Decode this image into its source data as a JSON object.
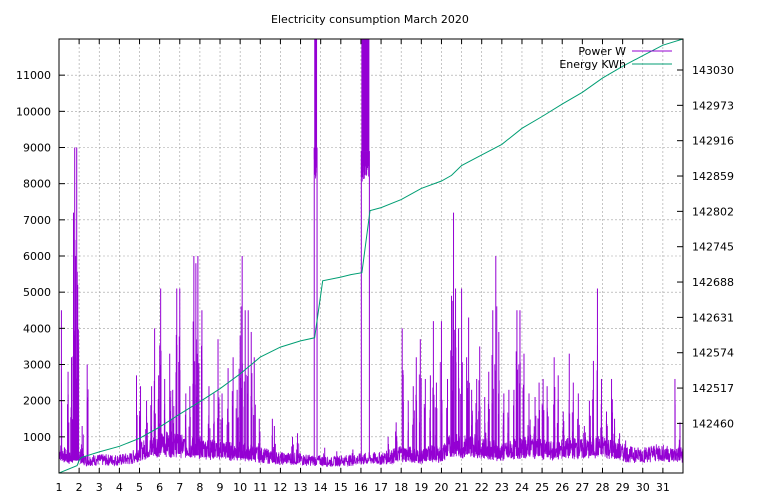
{
  "chart_data": {
    "type": "line",
    "title": "Electricity consumption March 2020",
    "grid": true,
    "legend_position": "top-right",
    "xlim": [
      1,
      32
    ],
    "x_ticks": [
      1,
      2,
      3,
      4,
      5,
      6,
      7,
      8,
      9,
      10,
      11,
      12,
      13,
      14,
      15,
      16,
      17,
      18,
      19,
      20,
      21,
      22,
      23,
      24,
      25,
      26,
      27,
      28,
      29,
      30,
      31
    ],
    "y_left": {
      "range": [
        0,
        12000
      ],
      "ticks": [
        1000,
        2000,
        3000,
        4000,
        5000,
        6000,
        7000,
        8000,
        9000,
        10000,
        11000
      ]
    },
    "y_right": {
      "range": [
        142380,
        143080
      ],
      "ticks": [
        142460,
        142517,
        142574,
        142631,
        142688,
        142745,
        142802,
        142859,
        142916,
        142973,
        143030
      ]
    },
    "series": [
      {
        "name": "Power W",
        "axis": "left",
        "color": "#9400d3",
        "baseline": [
          [
            1,
            600
          ],
          [
            1.5,
            400
          ],
          [
            1.7,
            500
          ],
          [
            2,
            500
          ],
          [
            2.3,
            350
          ],
          [
            3,
            360
          ],
          [
            4,
            360
          ],
          [
            4.6,
            400
          ],
          [
            5,
            600
          ],
          [
            5.5,
            700
          ],
          [
            6,
            800
          ],
          [
            6.5,
            800
          ],
          [
            7,
            750
          ],
          [
            7.5,
            700
          ],
          [
            8,
            700
          ],
          [
            8.5,
            650
          ],
          [
            9,
            650
          ],
          [
            9.5,
            600
          ],
          [
            10,
            600
          ],
          [
            10.6,
            550
          ],
          [
            11,
            500
          ],
          [
            11.5,
            450
          ],
          [
            12,
            400
          ],
          [
            12.5,
            400
          ],
          [
            13,
            380
          ],
          [
            13.5,
            350
          ],
          [
            14,
            340
          ],
          [
            14.5,
            300
          ],
          [
            15,
            350
          ],
          [
            15.5,
            350
          ],
          [
            16,
            380
          ],
          [
            16.5,
            400
          ],
          [
            17,
            400
          ],
          [
            17.5,
            450
          ],
          [
            18,
            550
          ],
          [
            18.5,
            500
          ],
          [
            19,
            450
          ],
          [
            19.5,
            550
          ],
          [
            20,
            500
          ],
          [
            20.5,
            800
          ],
          [
            21,
            700
          ],
          [
            21.5,
            800
          ],
          [
            22,
            700
          ],
          [
            22.5,
            650
          ],
          [
            23,
            550
          ],
          [
            23.5,
            650
          ],
          [
            24,
            700
          ],
          [
            24.5,
            750
          ],
          [
            25,
            650
          ],
          [
            25.5,
            600
          ],
          [
            26,
            650
          ],
          [
            26.5,
            700
          ],
          [
            27,
            650
          ],
          [
            27.5,
            700
          ],
          [
            28,
            750
          ],
          [
            28.5,
            650
          ],
          [
            29,
            550
          ],
          [
            29.5,
            500
          ],
          [
            30,
            500
          ],
          [
            30.5,
            550
          ],
          [
            31,
            550
          ],
          [
            31.5,
            500
          ],
          [
            32,
            500
          ]
        ],
        "peaks": [
          [
            1.12,
            4500
          ],
          [
            1.45,
            2800
          ],
          [
            1.62,
            3200
          ],
          [
            1.72,
            7200
          ],
          [
            1.78,
            9000
          ],
          [
            1.83,
            6000
          ],
          [
            1.88,
            9000
          ],
          [
            1.93,
            5200
          ],
          [
            2.15,
            1300
          ],
          [
            2.4,
            3000
          ],
          [
            4.85,
            2700
          ],
          [
            5.05,
            2400
          ],
          [
            5.35,
            2000
          ],
          [
            5.6,
            2400
          ],
          [
            5.75,
            4000
          ],
          [
            5.95,
            2700
          ],
          [
            6.05,
            5100
          ],
          [
            6.25,
            2600
          ],
          [
            6.5,
            3300
          ],
          [
            6.65,
            2300
          ],
          [
            6.85,
            5100
          ],
          [
            7.0,
            5100
          ],
          [
            7.3,
            2200
          ],
          [
            7.5,
            2400
          ],
          [
            7.7,
            6000
          ],
          [
            7.8,
            5800
          ],
          [
            7.9,
            6000
          ],
          [
            8.1,
            4500
          ],
          [
            8.45,
            2400
          ],
          [
            8.7,
            2200
          ],
          [
            8.9,
            3700
          ],
          [
            9.1,
            2200
          ],
          [
            9.4,
            2900
          ],
          [
            9.65,
            3200
          ],
          [
            9.85,
            2300
          ],
          [
            10.0,
            3800
          ],
          [
            10.1,
            6000
          ],
          [
            10.25,
            4500
          ],
          [
            10.4,
            4500
          ],
          [
            10.55,
            3900
          ],
          [
            10.7,
            3200
          ],
          [
            10.95,
            1500
          ],
          [
            11.6,
            1500
          ],
          [
            11.7,
            1300
          ],
          [
            12.6,
            1000
          ],
          [
            12.85,
            1100
          ],
          [
            14.2,
            700
          ],
          [
            14.8,
            600
          ],
          [
            15.6,
            650
          ],
          [
            17.35,
            1000
          ],
          [
            17.75,
            1400
          ],
          [
            18.05,
            4000
          ],
          [
            18.35,
            2000
          ],
          [
            18.6,
            2400
          ],
          [
            18.75,
            3200
          ],
          [
            18.95,
            3700
          ],
          [
            19.2,
            2600
          ],
          [
            19.45,
            2700
          ],
          [
            19.6,
            4200
          ],
          [
            19.75,
            2500
          ],
          [
            20.0,
            4200
          ],
          [
            20.3,
            2600
          ],
          [
            20.5,
            4900
          ],
          [
            20.6,
            7200
          ],
          [
            20.7,
            5100
          ],
          [
            20.85,
            4000
          ],
          [
            21.0,
            5100
          ],
          [
            21.25,
            3200
          ],
          [
            21.35,
            4300
          ],
          [
            21.5,
            2300
          ],
          [
            21.75,
            2600
          ],
          [
            21.9,
            3500
          ],
          [
            22.15,
            2100
          ],
          [
            22.35,
            2800
          ],
          [
            22.55,
            4500
          ],
          [
            22.7,
            6000
          ],
          [
            22.85,
            3900
          ],
          [
            23.1,
            2200
          ],
          [
            23.35,
            2300
          ],
          [
            23.6,
            2300
          ],
          [
            23.75,
            4500
          ],
          [
            23.9,
            4500
          ],
          [
            24.1,
            3300
          ],
          [
            24.35,
            2200
          ],
          [
            24.65,
            2100
          ],
          [
            24.85,
            2500
          ],
          [
            25.05,
            2600
          ],
          [
            25.25,
            2400
          ],
          [
            25.6,
            3200
          ],
          [
            25.8,
            2700
          ],
          [
            26.05,
            1700
          ],
          [
            26.35,
            3300
          ],
          [
            26.55,
            2500
          ],
          [
            26.8,
            2200
          ],
          [
            27.1,
            1300
          ],
          [
            27.35,
            2000
          ],
          [
            27.55,
            3100
          ],
          [
            27.75,
            5100
          ],
          [
            27.95,
            2600
          ],
          [
            28.2,
            1700
          ],
          [
            28.45,
            2600
          ],
          [
            28.6,
            1500
          ],
          [
            28.85,
            1100
          ],
          [
            29.15,
            900
          ],
          [
            29.6,
            700
          ],
          [
            29.9,
            650
          ],
          [
            30.3,
            650
          ],
          [
            30.8,
            750
          ],
          [
            31.2,
            700
          ],
          [
            31.6,
            2600
          ],
          [
            31.85,
            1400
          ]
        ],
        "high_blocks": [
          [
            13.68,
            13.82,
            9000,
            12000
          ],
          [
            16.02,
            16.42,
            8900,
            12000
          ]
        ]
      },
      {
        "name": "Energy KWh",
        "axis": "right",
        "color": "#009e73",
        "points": [
          [
            1,
            142380
          ],
          [
            1.9,
            142392
          ],
          [
            2.0,
            142400
          ],
          [
            2.1,
            142405
          ],
          [
            3,
            142414
          ],
          [
            4,
            142423
          ],
          [
            5,
            142436
          ],
          [
            6,
            142454
          ],
          [
            7,
            142475
          ],
          [
            8,
            142495
          ],
          [
            9,
            142516
          ],
          [
            10,
            142540
          ],
          [
            11,
            142567
          ],
          [
            12,
            142583
          ],
          [
            13,
            142593
          ],
          [
            13.7,
            142598
          ],
          [
            14.1,
            142690
          ],
          [
            15,
            142696
          ],
          [
            15.5,
            142700
          ],
          [
            16.05,
            142703
          ],
          [
            16.45,
            142803
          ],
          [
            17,
            142808
          ],
          [
            18,
            142821
          ],
          [
            19,
            142839
          ],
          [
            20,
            142851
          ],
          [
            20.5,
            142860
          ],
          [
            21,
            142876
          ],
          [
            22,
            142893
          ],
          [
            23,
            142910
          ],
          [
            24,
            142936
          ],
          [
            25,
            142955
          ],
          [
            26,
            142975
          ],
          [
            27,
            142994
          ],
          [
            28,
            143017
          ],
          [
            29,
            143036
          ],
          [
            30,
            143053
          ],
          [
            31,
            143070
          ],
          [
            32,
            143080
          ]
        ]
      }
    ]
  }
}
